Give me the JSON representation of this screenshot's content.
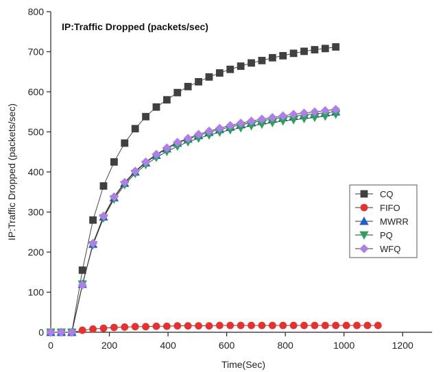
{
  "chart_data": {
    "type": "line",
    "title": "IP:Traffic Dropped (packets/sec)",
    "xlabel": "Time(Sec)",
    "ylabel": "IP:Traffic Dropped (packets/sec)",
    "xlim": [
      0,
      1300
    ],
    "ylim": [
      0,
      800
    ],
    "xticks": [
      0,
      200,
      400,
      600,
      800,
      1000,
      1200
    ],
    "yticks": [
      0,
      100,
      200,
      300,
      400,
      500,
      600,
      700,
      800
    ],
    "legend_position": "right",
    "grid": false,
    "series": [
      {
        "name": "CQ",
        "color": "#404040",
        "marker": "square",
        "x": [
          0,
          36,
          72,
          108,
          144,
          180,
          216,
          252,
          288,
          324,
          360,
          396,
          432,
          468,
          504,
          540,
          576,
          612,
          648,
          684,
          720,
          756,
          792,
          828,
          864,
          900,
          936,
          972
        ],
        "y": [
          0,
          0,
          0,
          155,
          280,
          365,
          425,
          472,
          508,
          538,
          562,
          580,
          598,
          613,
          625,
          637,
          647,
          656,
          664,
          672,
          678,
          685,
          690,
          696,
          701,
          705,
          708,
          712
        ]
      },
      {
        "name": "FIFO",
        "color": "#e8312f",
        "marker": "circle",
        "x": [
          0,
          36,
          72,
          108,
          144,
          180,
          216,
          252,
          288,
          324,
          360,
          396,
          432,
          468,
          504,
          540,
          576,
          612,
          648,
          684,
          720,
          756,
          792,
          828,
          864,
          900,
          936,
          972,
          1008,
          1044,
          1080,
          1116
        ],
        "y": [
          0,
          0,
          0,
          5,
          8,
          10,
          12,
          13,
          14,
          14,
          15,
          15,
          16,
          16,
          16,
          16,
          17,
          17,
          17,
          17,
          17,
          17,
          17,
          17,
          17,
          17,
          17,
          17,
          17,
          17,
          17,
          17
        ]
      },
      {
        "name": "MWRR",
        "color": "#1f5fd1",
        "marker": "triangle-up",
        "x": [
          0,
          36,
          72,
          108,
          144,
          180,
          216,
          252,
          288,
          324,
          360,
          396,
          432,
          468,
          504,
          540,
          576,
          612,
          648,
          684,
          720,
          756,
          792,
          828,
          864,
          900,
          936,
          972
        ],
        "y": [
          0,
          0,
          0,
          120,
          220,
          288,
          336,
          372,
          400,
          423,
          442,
          458,
          472,
          482,
          491,
          499,
          506,
          512,
          518,
          523,
          528,
          532,
          536,
          539,
          542,
          545,
          548,
          550
        ]
      },
      {
        "name": "PQ",
        "color": "#2aa35a",
        "marker": "triangle-down",
        "x": [
          0,
          36,
          72,
          108,
          144,
          180,
          216,
          252,
          288,
          324,
          360,
          396,
          432,
          468,
          504,
          540,
          576,
          612,
          648,
          684,
          720,
          756,
          792,
          828,
          864,
          900,
          936,
          972
        ],
        "y": [
          0,
          0,
          0,
          120,
          218,
          285,
          332,
          368,
          396,
          418,
          436,
          451,
          464,
          475,
          484,
          492,
          499,
          505,
          510,
          515,
          519,
          523,
          527,
          530,
          533,
          536,
          539,
          544
        ]
      },
      {
        "name": "WFQ",
        "color": "#b07ee8",
        "marker": "diamond",
        "x": [
          0,
          36,
          72,
          108,
          144,
          180,
          216,
          252,
          288,
          324,
          360,
          396,
          432,
          468,
          504,
          540,
          576,
          612,
          648,
          684,
          720,
          756,
          792,
          828,
          864,
          900,
          936,
          972
        ],
        "y": [
          0,
          0,
          0,
          118,
          222,
          290,
          338,
          374,
          402,
          425,
          444,
          460,
          474,
          484,
          494,
          502,
          509,
          516,
          522,
          527,
          532,
          536,
          540,
          544,
          547,
          550,
          553,
          556
        ]
      }
    ]
  }
}
